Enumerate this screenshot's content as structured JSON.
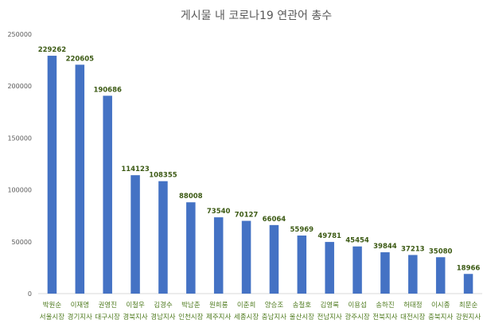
{
  "chart_data": {
    "type": "bar",
    "title": "게시물 내 코로나19 연관어 총수",
    "xlabel": "",
    "ylabel": "",
    "ylim": [
      0,
      250000
    ],
    "yticks": [
      "0",
      "50000",
      "100000",
      "150000",
      "200000",
      "250000"
    ],
    "grid": false,
    "bar_color": "#4472c4",
    "categories": [
      {
        "name": "박원순",
        "region": "서울시장"
      },
      {
        "name": "이재명",
        "region": "경기지사"
      },
      {
        "name": "권영진",
        "region": "대구시장"
      },
      {
        "name": "이철우",
        "region": "경북지사"
      },
      {
        "name": "김경수",
        "region": "경남지사"
      },
      {
        "name": "박남춘",
        "region": "인천시장"
      },
      {
        "name": "원희룡",
        "region": "제주지사"
      },
      {
        "name": "이춘희",
        "region": "세종시장"
      },
      {
        "name": "양승조",
        "region": "충남지사"
      },
      {
        "name": "송철호",
        "region": "울산시장"
      },
      {
        "name": "김영록",
        "region": "전남지사"
      },
      {
        "name": "이용섭",
        "region": "광주시장"
      },
      {
        "name": "송하진",
        "region": "전북지사"
      },
      {
        "name": "허태정",
        "region": "대전시장"
      },
      {
        "name": "이시종",
        "region": "충북지사"
      },
      {
        "name": "최문순",
        "region": "강원지사"
      }
    ],
    "values": [
      229262,
      220605,
      190686,
      114123,
      108355,
      88008,
      73540,
      70127,
      66064,
      55969,
      49781,
      45454,
      39844,
      37213,
      35080,
      18966
    ]
  }
}
